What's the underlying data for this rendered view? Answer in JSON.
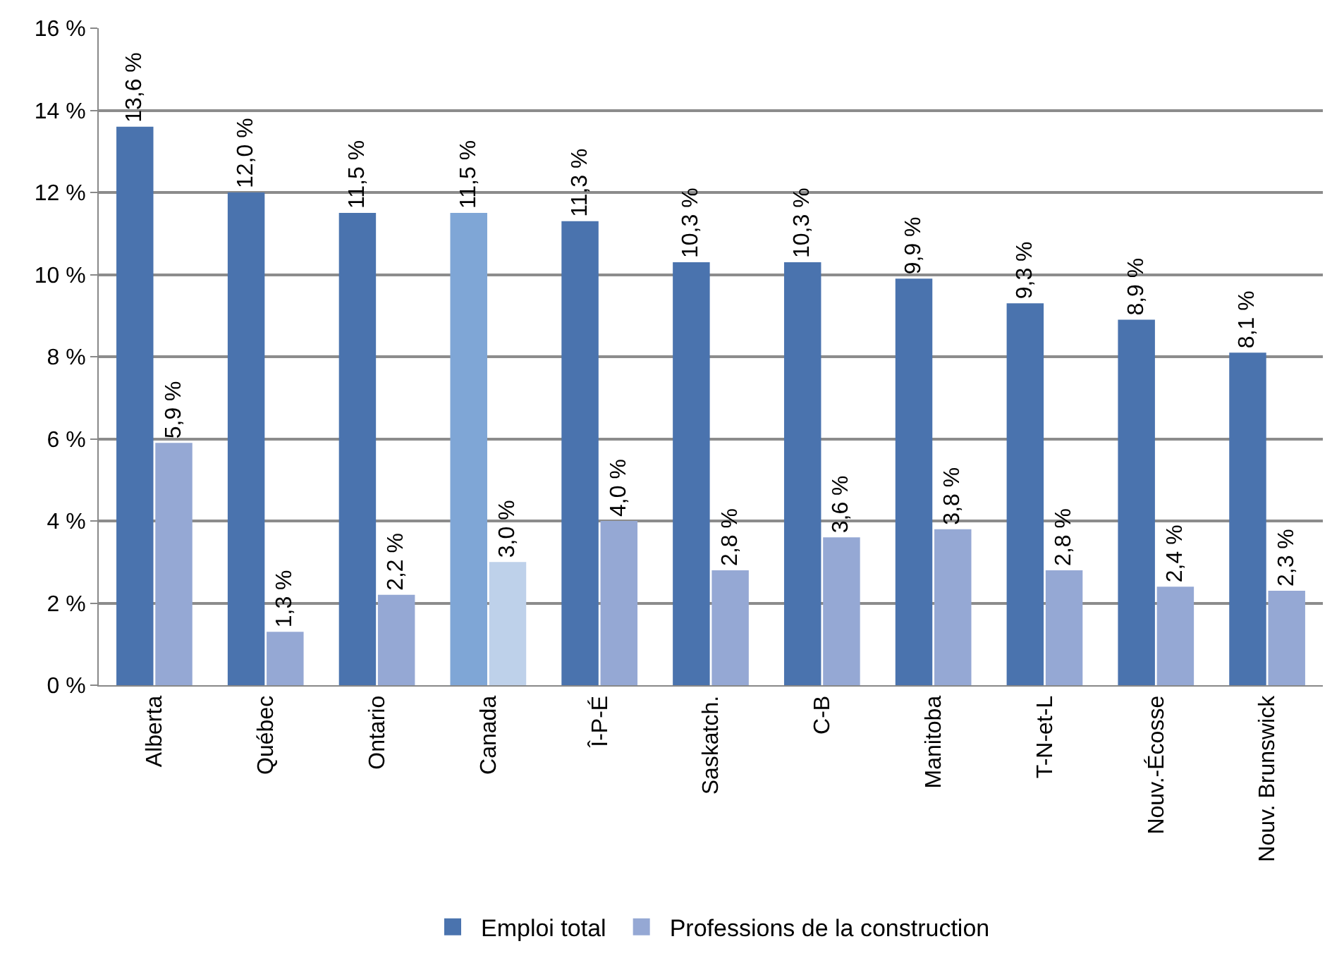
{
  "chart_data": {
    "type": "bar",
    "categories": [
      "Alberta",
      "Québec",
      "Ontario",
      "Canada",
      "Î-P-É",
      "Saskatch.",
      "C-B",
      "Manitoba",
      "T-N-et-L",
      "Nouv.-Écosse",
      "Nouv. Brunswick"
    ],
    "series": [
      {
        "name": "Emploi total",
        "color": "#4a73ae",
        "colors": [
          null,
          null,
          null,
          "#7fa6d6",
          null,
          null,
          null,
          null,
          null,
          null,
          null
        ],
        "values": [
          13.6,
          12.0,
          11.5,
          11.5,
          11.3,
          10.3,
          10.3,
          9.9,
          9.3,
          8.9,
          8.1
        ],
        "value_labels": [
          "13,6 %",
          "12,0 %",
          "11,5 %",
          "11,5 %",
          "11,3 %",
          "10,3 %",
          "10,3 %",
          "9,9 %",
          "9,3 %",
          "8,9 %",
          "8,1 %"
        ]
      },
      {
        "name": "Professions de la construction",
        "color": "#95a8d4",
        "colors": [
          null,
          null,
          null,
          "#bed1ea",
          null,
          null,
          null,
          null,
          null,
          null,
          null
        ],
        "values": [
          5.9,
          1.3,
          2.2,
          3.0,
          4.0,
          2.8,
          3.6,
          3.8,
          2.8,
          2.4,
          2.3
        ],
        "value_labels": [
          "5,9 %",
          "1,3 %",
          "2,2 %",
          "3,0 %",
          "4,0 %",
          "2,8 %",
          "3,6 %",
          "3,8 %",
          "2,8 %",
          "2,4 %",
          "2,3 %"
        ]
      }
    ],
    "ylim": [
      0,
      16
    ],
    "yticks": [
      {
        "value": 0,
        "label": "0 %"
      },
      {
        "value": 2,
        "label": "2 %"
      },
      {
        "value": 4,
        "label": "4 %"
      },
      {
        "value": 6,
        "label": "6 %"
      },
      {
        "value": 8,
        "label": "8 %"
      },
      {
        "value": 10,
        "label": "10 %"
      },
      {
        "value": 12,
        "label": "12 %"
      },
      {
        "value": 14,
        "label": "14 %"
      },
      {
        "value": 16,
        "label": "16 %"
      }
    ],
    "grid": "y",
    "legend": "bottom"
  }
}
